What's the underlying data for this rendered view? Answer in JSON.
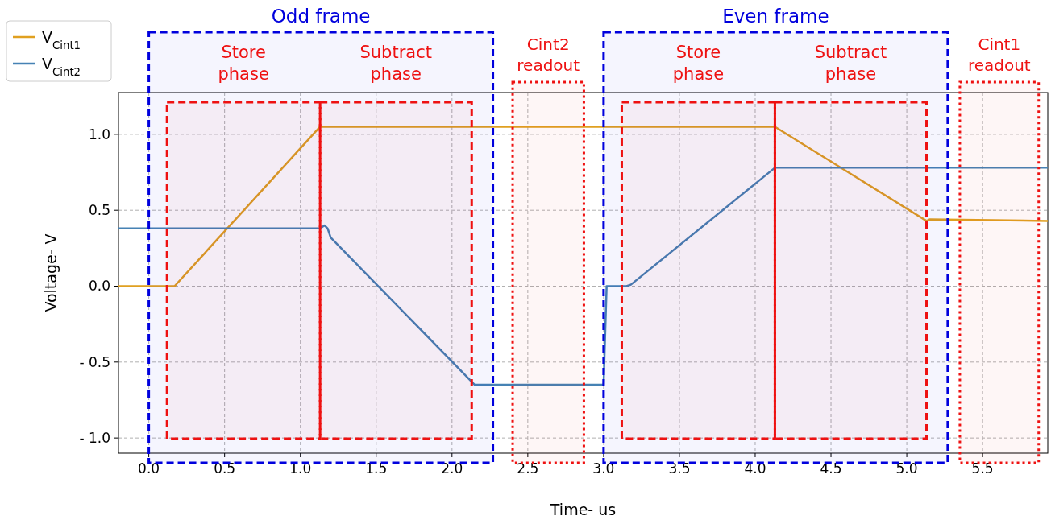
{
  "chart_data": {
    "type": "line",
    "xlabel": "Time- us",
    "ylabel": "Voltage- V",
    "xlim": [
      -0.2,
      5.93
    ],
    "ylim": [
      -1.1,
      1.275
    ],
    "xticks": [
      {
        "value": 0,
        "label": "0.0"
      },
      0.5,
      {
        "value": 1,
        "label": "1.0"
      },
      1.5,
      {
        "value": 2,
        "label": "2.0"
      },
      2.5,
      {
        "value": 3,
        "label": "3.0"
      },
      3.5,
      {
        "value": 4,
        "label": "4.0"
      },
      4.5,
      {
        "value": 5,
        "label": "5.0"
      },
      5.5
    ],
    "yticks": [
      {
        "value": -1,
        "label": "- 1.0"
      },
      {
        "value": -0.5,
        "label": "- 0.5"
      },
      {
        "value": 0,
        "label": "0.0"
      },
      0.5,
      {
        "value": 1,
        "label": "1.0"
      }
    ],
    "grid": true,
    "legend": "top left",
    "series": [
      {
        "name": "V$_{Cint1}$",
        "color": "#e0a020",
        "x": [
          -0.2,
          0.17,
          1.13,
          4.13,
          5.13,
          5.15,
          5.93
        ],
        "values": [
          0,
          0,
          1.05,
          1.05,
          0.43,
          0.44,
          0.43
        ]
      },
      {
        "name": "V$_{Cint2}$",
        "color": "#4682b4",
        "x": [
          -0.2,
          1.13,
          1.16,
          1.18,
          1.2,
          2.15,
          3.0,
          3.02,
          3.15,
          3.18,
          4.13,
          5.93
        ],
        "values": [
          0.38,
          0.38,
          0.4,
          0.38,
          0.32,
          -0.65,
          -0.65,
          0,
          0,
          0.01,
          0.78,
          0.78
        ]
      }
    ],
    "bands": [
      {
        "axis": "x",
        "from": 0,
        "to": 2.27,
        "label": "Odd frame",
        "color": "#0000dd"
      },
      {
        "axis": "x",
        "from": 0.12,
        "to": 1.13,
        "label": "Store\nphase",
        "color": "#ee1111"
      },
      {
        "axis": "x",
        "from": 1.13,
        "to": 2.13,
        "label": "Subtract\nphase",
        "color": "#ee1111"
      },
      {
        "axis": "x",
        "from": 2.4,
        "to": 2.87,
        "label": "Cint2\nreadout",
        "color": "#ee1111"
      },
      {
        "axis": "x",
        "from": 3.0,
        "to": 5.27,
        "label": "Even frame",
        "color": "#0000dd"
      },
      {
        "axis": "x",
        "from": 3.12,
        "to": 4.13,
        "label": "Store\nphase",
        "color": "#ee1111"
      },
      {
        "axis": "x",
        "from": 4.13,
        "to": 5.13,
        "label": "Subtract\nphase",
        "color": "#ee1111"
      },
      {
        "axis": "x",
        "from": 5.35,
        "to": 5.87,
        "label": "Cint1\nreadout",
        "color": "#ee1111"
      }
    ]
  }
}
